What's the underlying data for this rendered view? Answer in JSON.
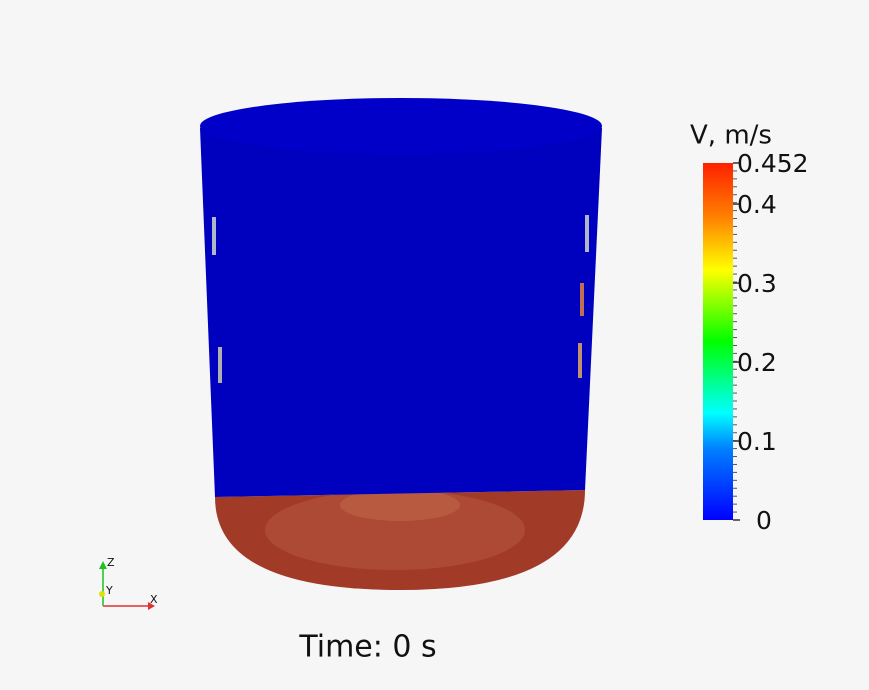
{
  "colorbar": {
    "title": "V, m/s",
    "ticks": [
      0,
      0.1,
      0.2,
      0.3,
      0.4,
      0.452
    ]
  },
  "time_label": "Time: 0 s",
  "axes": {
    "x": "X",
    "y": "Y",
    "z": "Z"
  }
}
